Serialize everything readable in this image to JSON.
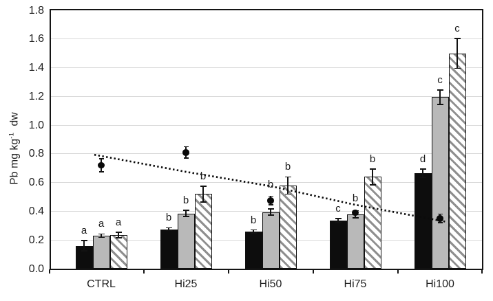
{
  "colors": {
    "background": "#ffffff",
    "axis": "#141414",
    "gridline": "#d8d8d8",
    "text": "#1f1f1f",
    "bar_black": "#0d0d0d",
    "bar_gray": "#b9b9b9",
    "hatch_stripe": "#8f8f8f",
    "marker": "#0a0a0a"
  },
  "chart_data": {
    "type": "bar",
    "title": "",
    "xlabel": "",
    "ylabel": "Pb mg kg⁻¹ dw",
    "ylabel_rich": {
      "base": "Pb mg kg",
      "sup": "-1",
      "rest": "dw"
    },
    "categories": [
      "CTRL",
      "Hi25",
      "Hi50",
      "Hi75",
      "Hi100"
    ],
    "ylim": [
      0,
      1.8
    ],
    "ytick_step": 0.2,
    "ytick_labels": [
      "0.0",
      "0.2",
      "0.4",
      "0.6",
      "0.8",
      "1.0",
      "1.2",
      "1.4",
      "1.6",
      "1.8"
    ],
    "grid": "horizontal",
    "legend": "none",
    "series": [
      {
        "name": "black-bars",
        "type": "bar",
        "pattern": "solid-black",
        "values": [
          0.16,
          0.275,
          0.26,
          0.335,
          0.665
        ],
        "errors": [
          0.035,
          0.01,
          0.01,
          0.015,
          0.03
        ],
        "letters": [
          "a",
          "b",
          "b",
          "c",
          "d"
        ],
        "letter_dy_px": [
          0,
          0,
          0,
          0,
          0
        ]
      },
      {
        "name": "gray-bars",
        "type": "bar",
        "pattern": "solid-gray",
        "values": [
          0.23,
          0.385,
          0.395,
          0.38,
          1.195
        ],
        "errors": [
          0.012,
          0.022,
          0.022,
          0.025,
          0.05
        ],
        "letters": [
          "a",
          "b",
          "b",
          "b",
          "c"
        ],
        "letter_dy_px": [
          0,
          0,
          -21,
          -3,
          0
        ]
      },
      {
        "name": "hatched-bars",
        "type": "bar",
        "pattern": "diagonal-hatch",
        "values": [
          0.235,
          0.52,
          0.58,
          0.64,
          1.5
        ],
        "errors": [
          0.02,
          0.055,
          0.06,
          0.055,
          0.105
        ],
        "letters": [
          "a",
          "b",
          "b",
          "b",
          "c"
        ],
        "letter_dy_px": [
          0,
          0,
          0,
          0,
          0
        ]
      },
      {
        "name": "black-dots",
        "type": "scatter",
        "marker": "filled-black-circle",
        "values": [
          0.72,
          0.81,
          0.475,
          0.39,
          0.35
        ],
        "errors": [
          0.045,
          0.04,
          0.03,
          0.015,
          0.03
        ]
      }
    ],
    "trendline": {
      "style": "dotted-black",
      "values": [
        0.785,
        0.675,
        0.575,
        0.445,
        0.335
      ]
    }
  }
}
